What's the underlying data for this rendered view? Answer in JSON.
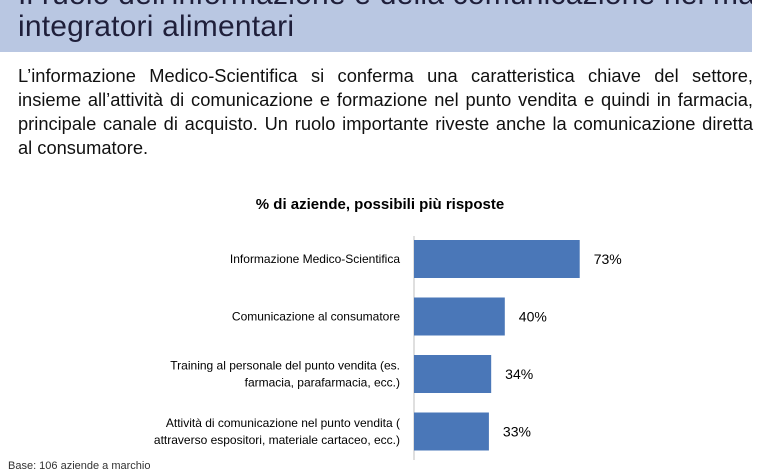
{
  "header": {
    "title_line1": "integratori alimentari"
  },
  "intro_text": "L’informazione Medico-Scientifica si conferma una caratteristica chiave del settore, insieme all’attività di comunicazione e formazione nel punto vendita e quindi in farmacia, principale canale di acquisto. Un ruolo importante riveste anche la comunicazione diretta al consumatore.",
  "footnote": "Base: 106 aziende a marchio",
  "colors": {
    "bar": "#4a77b8",
    "title_band": "#b9c7e2"
  },
  "chart_data": {
    "type": "bar",
    "orientation": "horizontal",
    "title": "% di aziende, possibili più risposte",
    "categories": [
      [
        "Informazione Medico-Scientifica"
      ],
      [
        "Comunicazione al consumatore"
      ],
      [
        "Training al personale del punto vendita (es.",
        "farmacia, parafarmacia, ecc.)"
      ],
      [
        "Attività di comunicazione nel punto vendita (",
        "attraverso espositori, materiale cartaceo, ecc.)"
      ]
    ],
    "values": [
      73,
      40,
      34,
      33
    ],
    "value_labels": [
      "73%",
      "40%",
      "34%",
      "33%"
    ],
    "xlim": [
      0,
      100
    ],
    "grid": false,
    "legend": "none"
  }
}
